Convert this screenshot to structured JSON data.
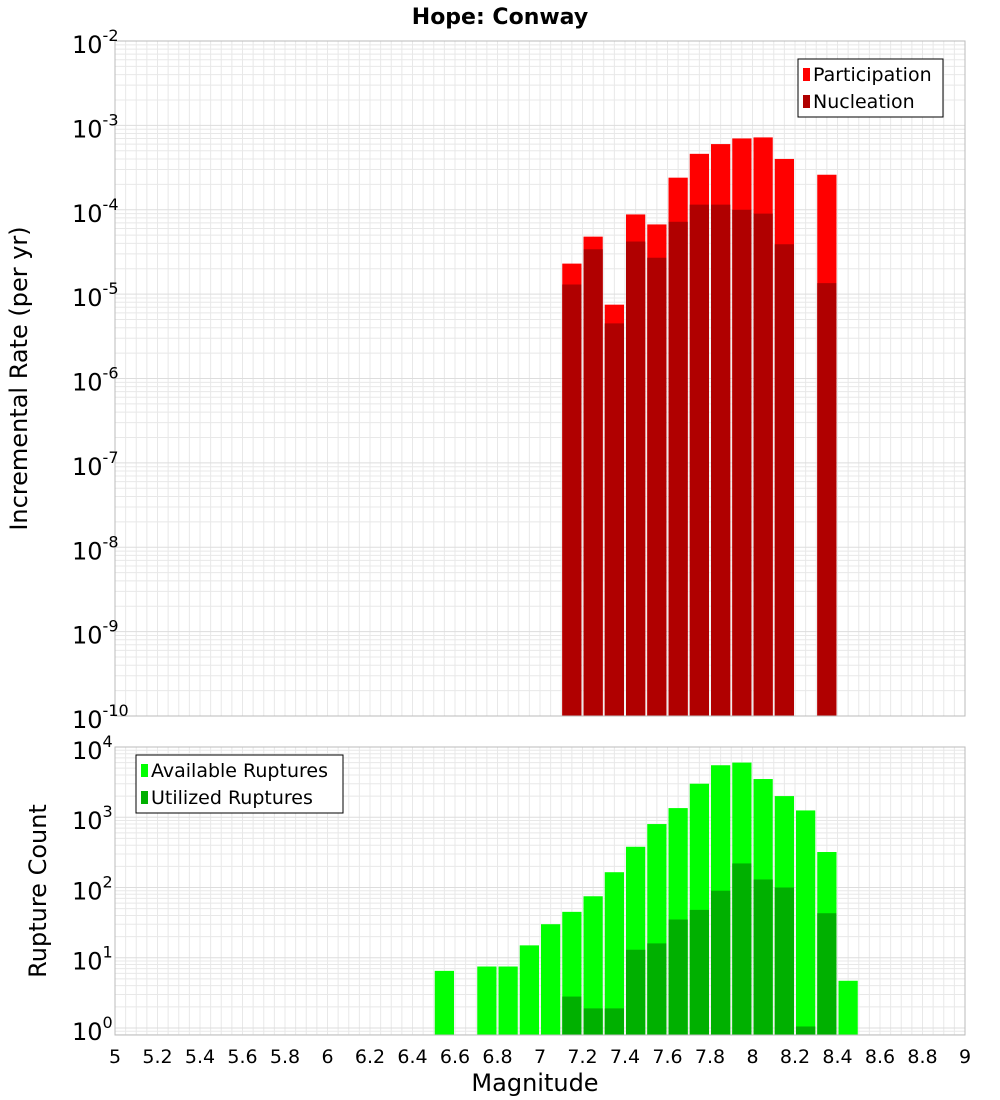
{
  "title": "Hope: Conway",
  "colors": {
    "participation": "#ff0000",
    "nucleation": "#b00000",
    "available": "#00ff00",
    "utilized": "#00b000",
    "grid": "#e8e8e8",
    "frame": "#bbbbbb"
  },
  "chart_data": [
    {
      "type": "bar",
      "name": "incremental-rate",
      "ylabel": "Incremental Rate (per yr)",
      "yscale": "log",
      "ylim_exponents": [
        -10,
        -2
      ],
      "ytick_labels": [
        {
          "base": "10",
          "exp": "-10"
        },
        {
          "base": "10",
          "exp": "-9"
        },
        {
          "base": "10",
          "exp": "-8"
        },
        {
          "base": "10",
          "exp": "-7"
        },
        {
          "base": "10",
          "exp": "-6"
        },
        {
          "base": "10",
          "exp": "-5"
        },
        {
          "base": "10",
          "exp": "-4"
        },
        {
          "base": "10",
          "exp": "-3"
        },
        {
          "base": "10",
          "exp": "-2"
        }
      ],
      "xlim": [
        5,
        9
      ],
      "bar_width": 0.1,
      "legend": [
        "Participation",
        "Nucleation"
      ],
      "legend_position": "top-right",
      "series": [
        {
          "name": "Participation",
          "x": [
            7.15,
            7.25,
            7.35,
            7.45,
            7.55,
            7.65,
            7.75,
            7.85,
            7.95,
            8.05,
            8.15,
            8.35
          ],
          "values": [
            2.3e-05,
            4.8e-05,
            7.5e-06,
            8.8e-05,
            6.7e-05,
            0.00024,
            0.00046,
            0.0006,
            0.0007,
            0.00072,
            0.0004,
            0.00026
          ]
        },
        {
          "name": "Nucleation",
          "x": [
            7.15,
            7.25,
            7.35,
            7.45,
            7.55,
            7.65,
            7.75,
            7.85,
            7.95,
            8.05,
            8.15,
            8.35
          ],
          "values": [
            1.3e-05,
            3.4e-05,
            4.5e-06,
            4.2e-05,
            2.7e-05,
            7.2e-05,
            0.000115,
            0.000115,
            0.0001,
            9e-05,
            3.9e-05,
            1.35e-05
          ]
        }
      ]
    },
    {
      "type": "bar",
      "name": "rupture-count",
      "ylabel": "Rupture Count",
      "xlabel": "Magnitude",
      "yscale": "log",
      "ylim_exponents": [
        -0.1,
        4
      ],
      "ytick_labels": [
        {
          "base": "10",
          "exp": "0"
        },
        {
          "base": "10",
          "exp": "1"
        },
        {
          "base": "10",
          "exp": "2"
        },
        {
          "base": "10",
          "exp": "3"
        },
        {
          "base": "10",
          "exp": "4"
        }
      ],
      "xlim": [
        5,
        9
      ],
      "xtick_labels": [
        "5",
        "5.2",
        "5.4",
        "5.6",
        "5.8",
        "6",
        "6.2",
        "6.4",
        "6.6",
        "6.8",
        "7",
        "7.2",
        "7.4",
        "7.6",
        "7.8",
        "8",
        "8.2",
        "8.4",
        "8.6",
        "8.8",
        "9"
      ],
      "bar_width": 0.1,
      "legend": [
        "Available Ruptures",
        "Utilized Ruptures"
      ],
      "legend_position": "top-left",
      "series": [
        {
          "name": "Available Ruptures",
          "x": [
            6.55,
            6.75,
            6.85,
            6.95,
            7.05,
            7.15,
            7.25,
            7.35,
            7.45,
            7.55,
            7.65,
            7.75,
            7.85,
            7.95,
            8.05,
            8.15,
            8.25,
            8.35,
            8.45
          ],
          "values": [
            6.5,
            7.5,
            7.5,
            15,
            30,
            45,
            75,
            165,
            380,
            800,
            1350,
            3000,
            5500,
            6000,
            3500,
            2000,
            1250,
            320,
            4.7
          ]
        },
        {
          "name": "Utilized Ruptures",
          "x": [
            7.15,
            7.25,
            7.35,
            7.45,
            7.55,
            7.65,
            7.75,
            7.85,
            7.95,
            8.05,
            8.15,
            8.25,
            8.35
          ],
          "values": [
            2.8,
            1.9,
            1.9,
            13,
            16,
            35,
            48,
            90,
            220,
            130,
            100,
            1.05,
            43
          ]
        }
      ]
    }
  ]
}
